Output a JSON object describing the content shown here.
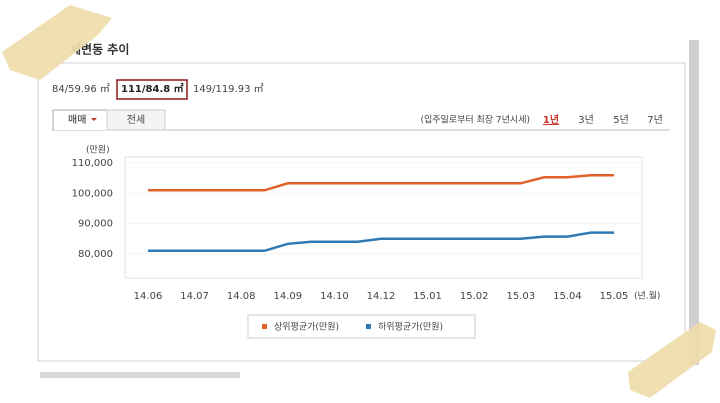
{
  "header": {
    "title": "세변동 추이"
  },
  "size_tabs": [
    "84/59.96 ㎡",
    "111/84.8 ㎡",
    "149/119.93 ㎡"
  ],
  "trade_tabs": [
    "매매",
    "전세"
  ],
  "period_note": "(입주일로부터 최장 7년시세)",
  "periods": [
    "1년",
    "3년",
    "5년",
    "7년"
  ],
  "chart_data": {
    "type": "line",
    "y_unit": "(만원)",
    "x_unit": "(년.월)",
    "categories": [
      "14.06",
      null,
      "14.07",
      null,
      "14.08",
      null,
      "14.09",
      null,
      "14.10",
      null,
      "14.12",
      null,
      "15.01",
      null,
      "15.02",
      null,
      "15.03",
      null,
      "15.04",
      null,
      "15.05"
    ],
    "series": [
      {
        "name": "상위평균가(만원)",
        "color": "#e0622a",
        "values": [
          101000,
          101000,
          101000,
          101000,
          101000,
          101000,
          103300,
          103300,
          103300,
          103300,
          103300,
          103300,
          103300,
          103300,
          103300,
          103300,
          103300,
          105300,
          105300,
          106000,
          106000
        ]
      },
      {
        "name": "하위평균가(만원)",
        "color": "#2f7ab5",
        "values": [
          81000,
          81000,
          81000,
          81000,
          81000,
          81000,
          83300,
          84000,
          84000,
          84000,
          85000,
          85000,
          85000,
          85000,
          85000,
          85000,
          85000,
          85700,
          85700,
          87000,
          87000
        ]
      }
    ],
    "ylim": [
      72000,
      112000
    ],
    "yticks": [
      {
        "value": 80000,
        "label": "80,000"
      },
      {
        "value": 90000,
        "label": "90,000"
      },
      {
        "value": 100000,
        "label": "100,000"
      },
      {
        "value": 110000,
        "label": "110,000"
      }
    ],
    "grid": true
  }
}
